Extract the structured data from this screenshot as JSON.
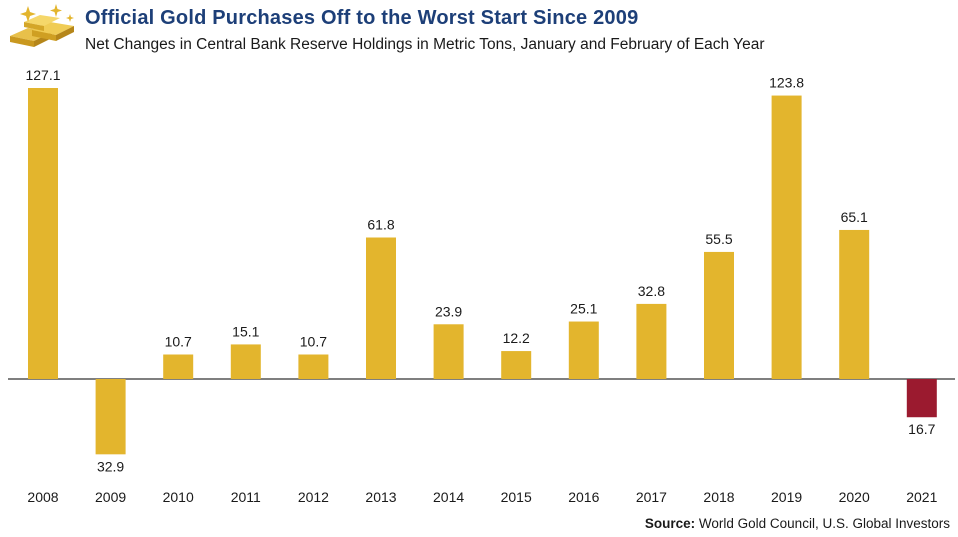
{
  "header": {
    "title": "Official Gold Purchases Off to the Worst Start Since 2009",
    "subtitle": "Net Changes in Central Bank Reserve Holdings in Metric Tons, January and February of Each Year"
  },
  "source": {
    "label": "Source:",
    "text": "World Gold Council, U.S. Global Investors"
  },
  "colors": {
    "positive_bar": "#e3b52d",
    "negative_2021_bar": "#9b1a2f",
    "title": "#1d3f78"
  },
  "logo_icon": "gold-bars-icon",
  "chart_data": {
    "type": "bar",
    "categories": [
      "2008",
      "2009",
      "2010",
      "2011",
      "2012",
      "2013",
      "2014",
      "2015",
      "2016",
      "2017",
      "2018",
      "2019",
      "2020",
      "2021"
    ],
    "values": [
      127.1,
      -32.9,
      10.7,
      15.1,
      10.7,
      61.8,
      23.9,
      12.2,
      25.1,
      32.8,
      55.5,
      123.8,
      65.1,
      -16.7
    ],
    "data_labels": [
      "127.1",
      "32.9",
      "10.7",
      "15.1",
      "10.7",
      "61.8",
      "23.9",
      "12.2",
      "25.1",
      "32.8",
      "55.5",
      "123.8",
      "65.1",
      "16.7"
    ],
    "title": "Official Gold Purchases Off to the Worst Start Since 2009",
    "subtitle": "Net Changes in Central Bank Reserve Holdings in Metric Tons, January and February of Each Year",
    "xlabel": "",
    "ylabel": "",
    "ylim": [
      -32.9,
      127.1
    ],
    "grid": false,
    "legend": "none"
  }
}
